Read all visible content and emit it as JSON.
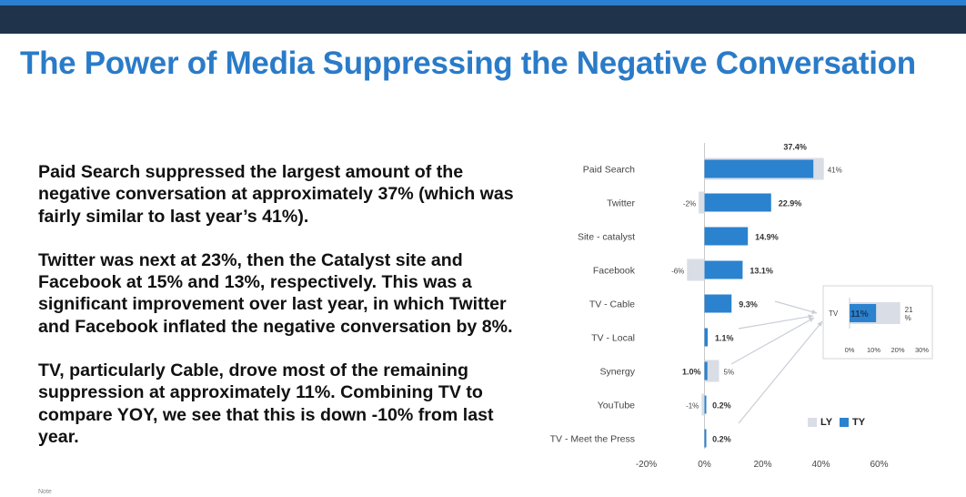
{
  "title": "The Power of Media Suppressing the Negative Conversation",
  "paragraphs": [
    "Paid Search suppressed the largest amount of the negative conversation at approximately 37% (which was fairly similar to last year’s 41%).",
    "Twitter was next at 23%, then the Catalyst site and Facebook at 15% and 13%, respectively. This was a significant improvement over last year, in which Twitter and Facebook inflated the negative conversation by 8%.",
    "TV, particularly Cable, drove most of the remaining suppression at approximately 11%. Combining TV to compare YOY, we see that this is down -10% from last year."
  ],
  "note": "Note",
  "colors": {
    "ty": "#2b82cf",
    "ly": "#d9dde5",
    "title": "#2a7bc8",
    "bar_top": "#1f334b"
  },
  "chart_data": [
    {
      "type": "bar",
      "orientation": "horizontal",
      "categories": [
        "Paid Search",
        "Twitter",
        "Site - catalyst",
        "Facebook",
        "TV - Cable",
        "TV - Local",
        "Synergy",
        "YouTube",
        "TV - Meet the Press"
      ],
      "series": [
        {
          "name": "LY",
          "values": [
            41,
            -2,
            null,
            -6,
            null,
            null,
            5,
            -1,
            null
          ],
          "labels": [
            "41%",
            "-2%",
            "",
            "-6%",
            "",
            "",
            "5%",
            "-1%",
            ""
          ]
        },
        {
          "name": "TY",
          "values": [
            37.4,
            22.9,
            14.9,
            13.1,
            9.3,
            1.1,
            1.0,
            0.2,
            0.2
          ],
          "labels": [
            "37.4%",
            "22.9%",
            "14.9%",
            "13.1%",
            "9.3%",
            "1.1%",
            "1.0%",
            "0.2%",
            "0.2%"
          ]
        }
      ],
      "xlim": [
        -20,
        60
      ],
      "xticks": [
        "-20%",
        "0%",
        "20%",
        "40%",
        "60%"
      ],
      "legend": {
        "position": "bottom-right",
        "labels": [
          "LY",
          "TY"
        ]
      },
      "title": "",
      "xlabel": "",
      "ylabel": ""
    },
    {
      "type": "bar",
      "orientation": "horizontal",
      "categories": [
        "TV"
      ],
      "series": [
        {
          "name": "LY",
          "values": [
            21
          ],
          "labels": [
            "21\n%"
          ]
        },
        {
          "name": "TY",
          "values": [
            11
          ],
          "labels": [
            "11%"
          ]
        }
      ],
      "xlim": [
        0,
        30
      ],
      "xticks": [
        "0%",
        "10%",
        "20%",
        "30%"
      ]
    }
  ]
}
